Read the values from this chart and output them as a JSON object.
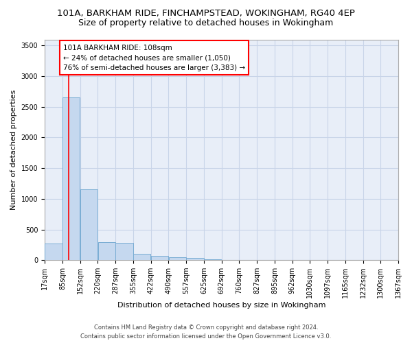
{
  "title": "101A, BARKHAM RIDE, FINCHAMPSTEAD, WOKINGHAM, RG40 4EP",
  "subtitle": "Size of property relative to detached houses in Wokingham",
  "xlabel": "Distribution of detached houses by size in Wokingham",
  "ylabel": "Number of detached properties",
  "bar_values": [
    270,
    2650,
    1150,
    290,
    285,
    105,
    65,
    45,
    35,
    10,
    5,
    5,
    3,
    2,
    1,
    1,
    0,
    0,
    0,
    0
  ],
  "bin_edges": [
    17,
    85,
    152,
    220,
    287,
    355,
    422,
    490,
    557,
    625,
    692,
    760,
    827,
    895,
    962,
    1030,
    1097,
    1165,
    1232,
    1300,
    1367
  ],
  "xlabels": [
    "17sqm",
    "85sqm",
    "152sqm",
    "220sqm",
    "287sqm",
    "355sqm",
    "422sqm",
    "490sqm",
    "557sqm",
    "625sqm",
    "692sqm",
    "760sqm",
    "827sqm",
    "895sqm",
    "962sqm",
    "1030sqm",
    "1097sqm",
    "1165sqm",
    "1232sqm",
    "1300sqm",
    "1367sqm"
  ],
  "bar_color": "#c5d8ef",
  "bar_edge_color": "#7aadd4",
  "grid_color": "#c8d4e8",
  "background_color": "#e8eef8",
  "red_line_x": 108,
  "annotation_text": "101A BARKHAM RIDE: 108sqm\n← 24% of detached houses are smaller (1,050)\n76% of semi-detached houses are larger (3,383) →",
  "footer_text": "Contains HM Land Registry data © Crown copyright and database right 2024.\nContains public sector information licensed under the Open Government Licence v3.0.",
  "ylim": [
    0,
    3600
  ],
  "yticks": [
    0,
    500,
    1000,
    1500,
    2000,
    2500,
    3000,
    3500
  ],
  "title_fontsize": 9.5,
  "subtitle_fontsize": 9,
  "axis_fontsize": 8,
  "tick_fontsize": 7,
  "footer_fontsize": 6
}
